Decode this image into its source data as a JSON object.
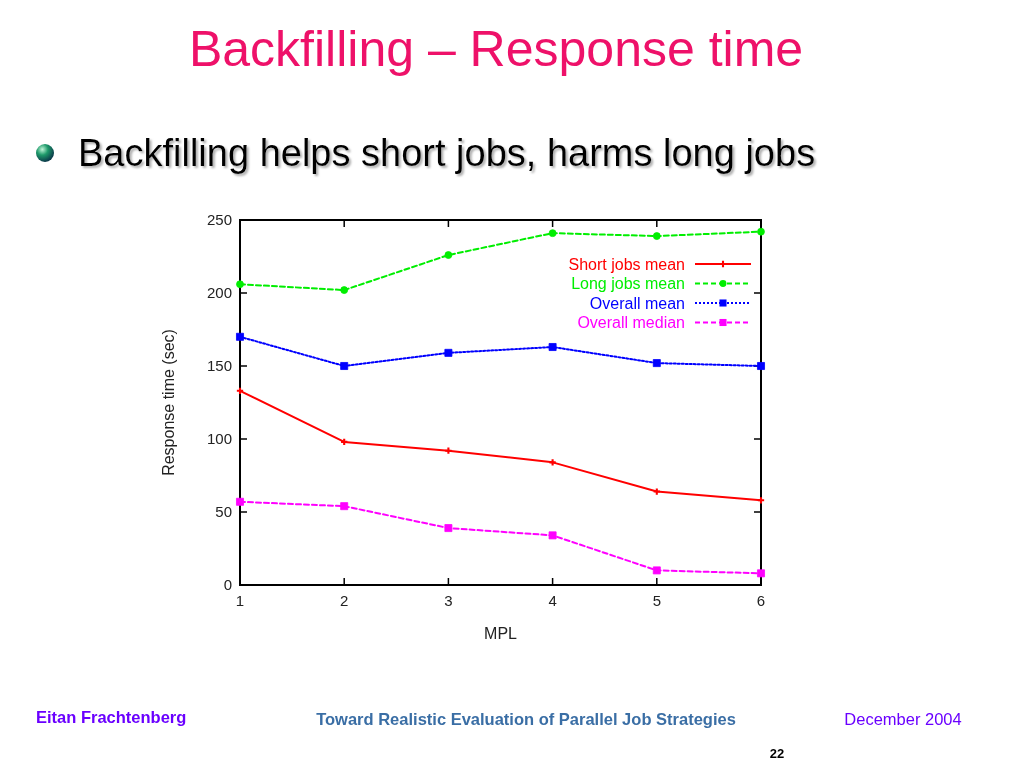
{
  "chart_data": {
    "type": "line",
    "title": "Backfilling – Response time",
    "subtitle": "Backfilling helps short jobs, harms long jobs",
    "xlabel": "MPL",
    "ylabel": "Response time (sec)",
    "x": [
      1,
      2,
      3,
      4,
      5,
      6
    ],
    "xlim": [
      1,
      6
    ],
    "xticks": [
      1,
      2,
      3,
      4,
      5,
      6
    ],
    "ylim": [
      0,
      250
    ],
    "yticks": [
      0,
      50,
      100,
      150,
      200,
      250
    ],
    "legend": "top right",
    "series": [
      {
        "name": "Short jobs mean",
        "color": "#ff0000",
        "marker": "cross",
        "line_style": "solid",
        "values": [
          133,
          98,
          92,
          84,
          64,
          58
        ]
      },
      {
        "name": "Long jobs mean",
        "color": "#00ee00",
        "marker": "circle",
        "line_style": "dashed",
        "values": [
          206,
          202,
          226,
          241,
          239,
          242
        ]
      },
      {
        "name": "Overall mean",
        "color": "#0000ff",
        "marker": "square",
        "line_style": "dotted",
        "values": [
          170,
          150,
          159,
          163,
          152,
          150
        ]
      },
      {
        "name": "Overall median",
        "color": "#ff00ff",
        "marker": "square",
        "line_style": "dashed",
        "values": [
          57,
          54,
          39,
          34,
          10,
          8
        ]
      }
    ],
    "annotations": [
      "Eitan Frachtenberg",
      "Toward Realistic Evaluation of Parallel Job Strategies",
      "December 2004",
      "22"
    ]
  }
}
